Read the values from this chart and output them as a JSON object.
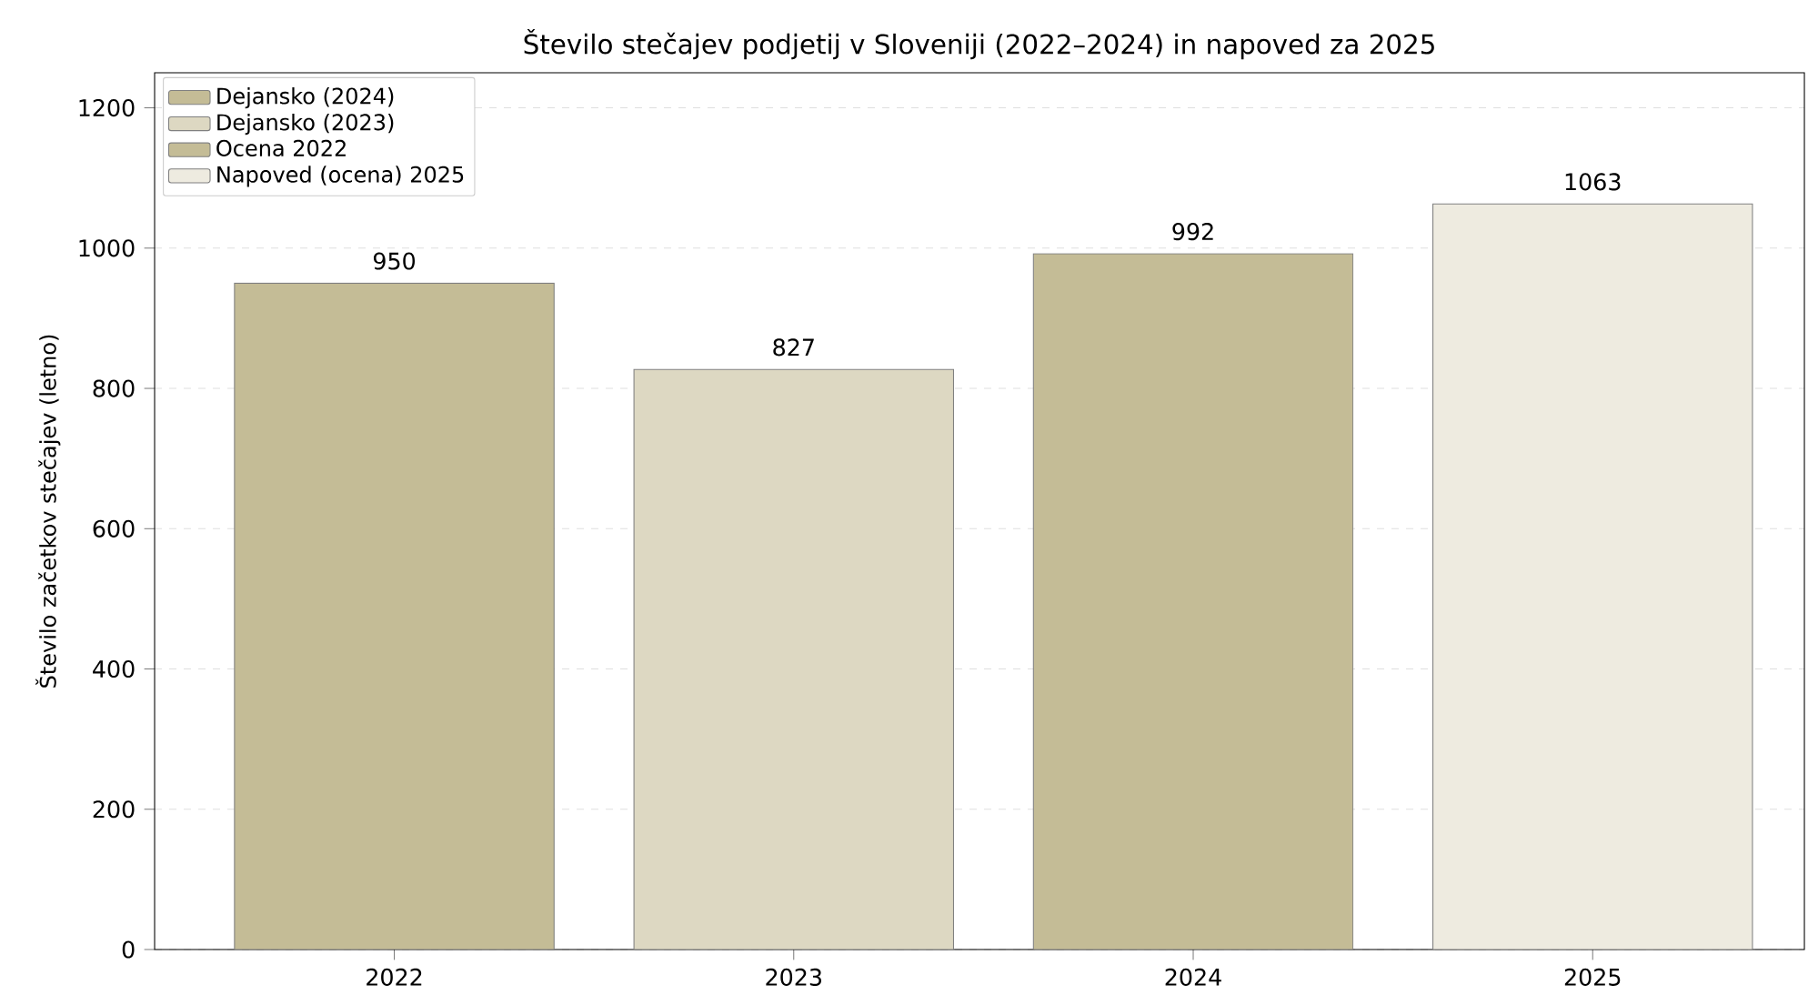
{
  "chart_data": {
    "type": "bar",
    "title": "Število stečajev podjetij v Sloveniji (2022–2024) in napoved za 2025",
    "ylabel": "Število začetkov stečajev (letno)",
    "categories": [
      "2022",
      "2023",
      "2024",
      "2025"
    ],
    "series": [
      {
        "name": "Dejansko (2024)",
        "color": "#c4bc96",
        "values": [
          null,
          null,
          992,
          null
        ]
      },
      {
        "name": "Dejansko (2023)",
        "color": "#ddd8c2",
        "values": [
          null,
          827,
          null,
          null
        ]
      },
      {
        "name": "Ocena 2022",
        "color": "#c4bc96",
        "values": [
          950,
          null,
          null,
          null
        ]
      },
      {
        "name": "Napoved (ocena) 2025",
        "color": "#eeebe0",
        "values": [
          null,
          null,
          null,
          1063
        ]
      }
    ],
    "ylim": [
      0,
      1250
    ],
    "yticks": [
      0,
      200,
      400,
      600,
      800,
      1000,
      1200
    ],
    "grid": "y",
    "legend": "top left",
    "data_labels": true
  }
}
